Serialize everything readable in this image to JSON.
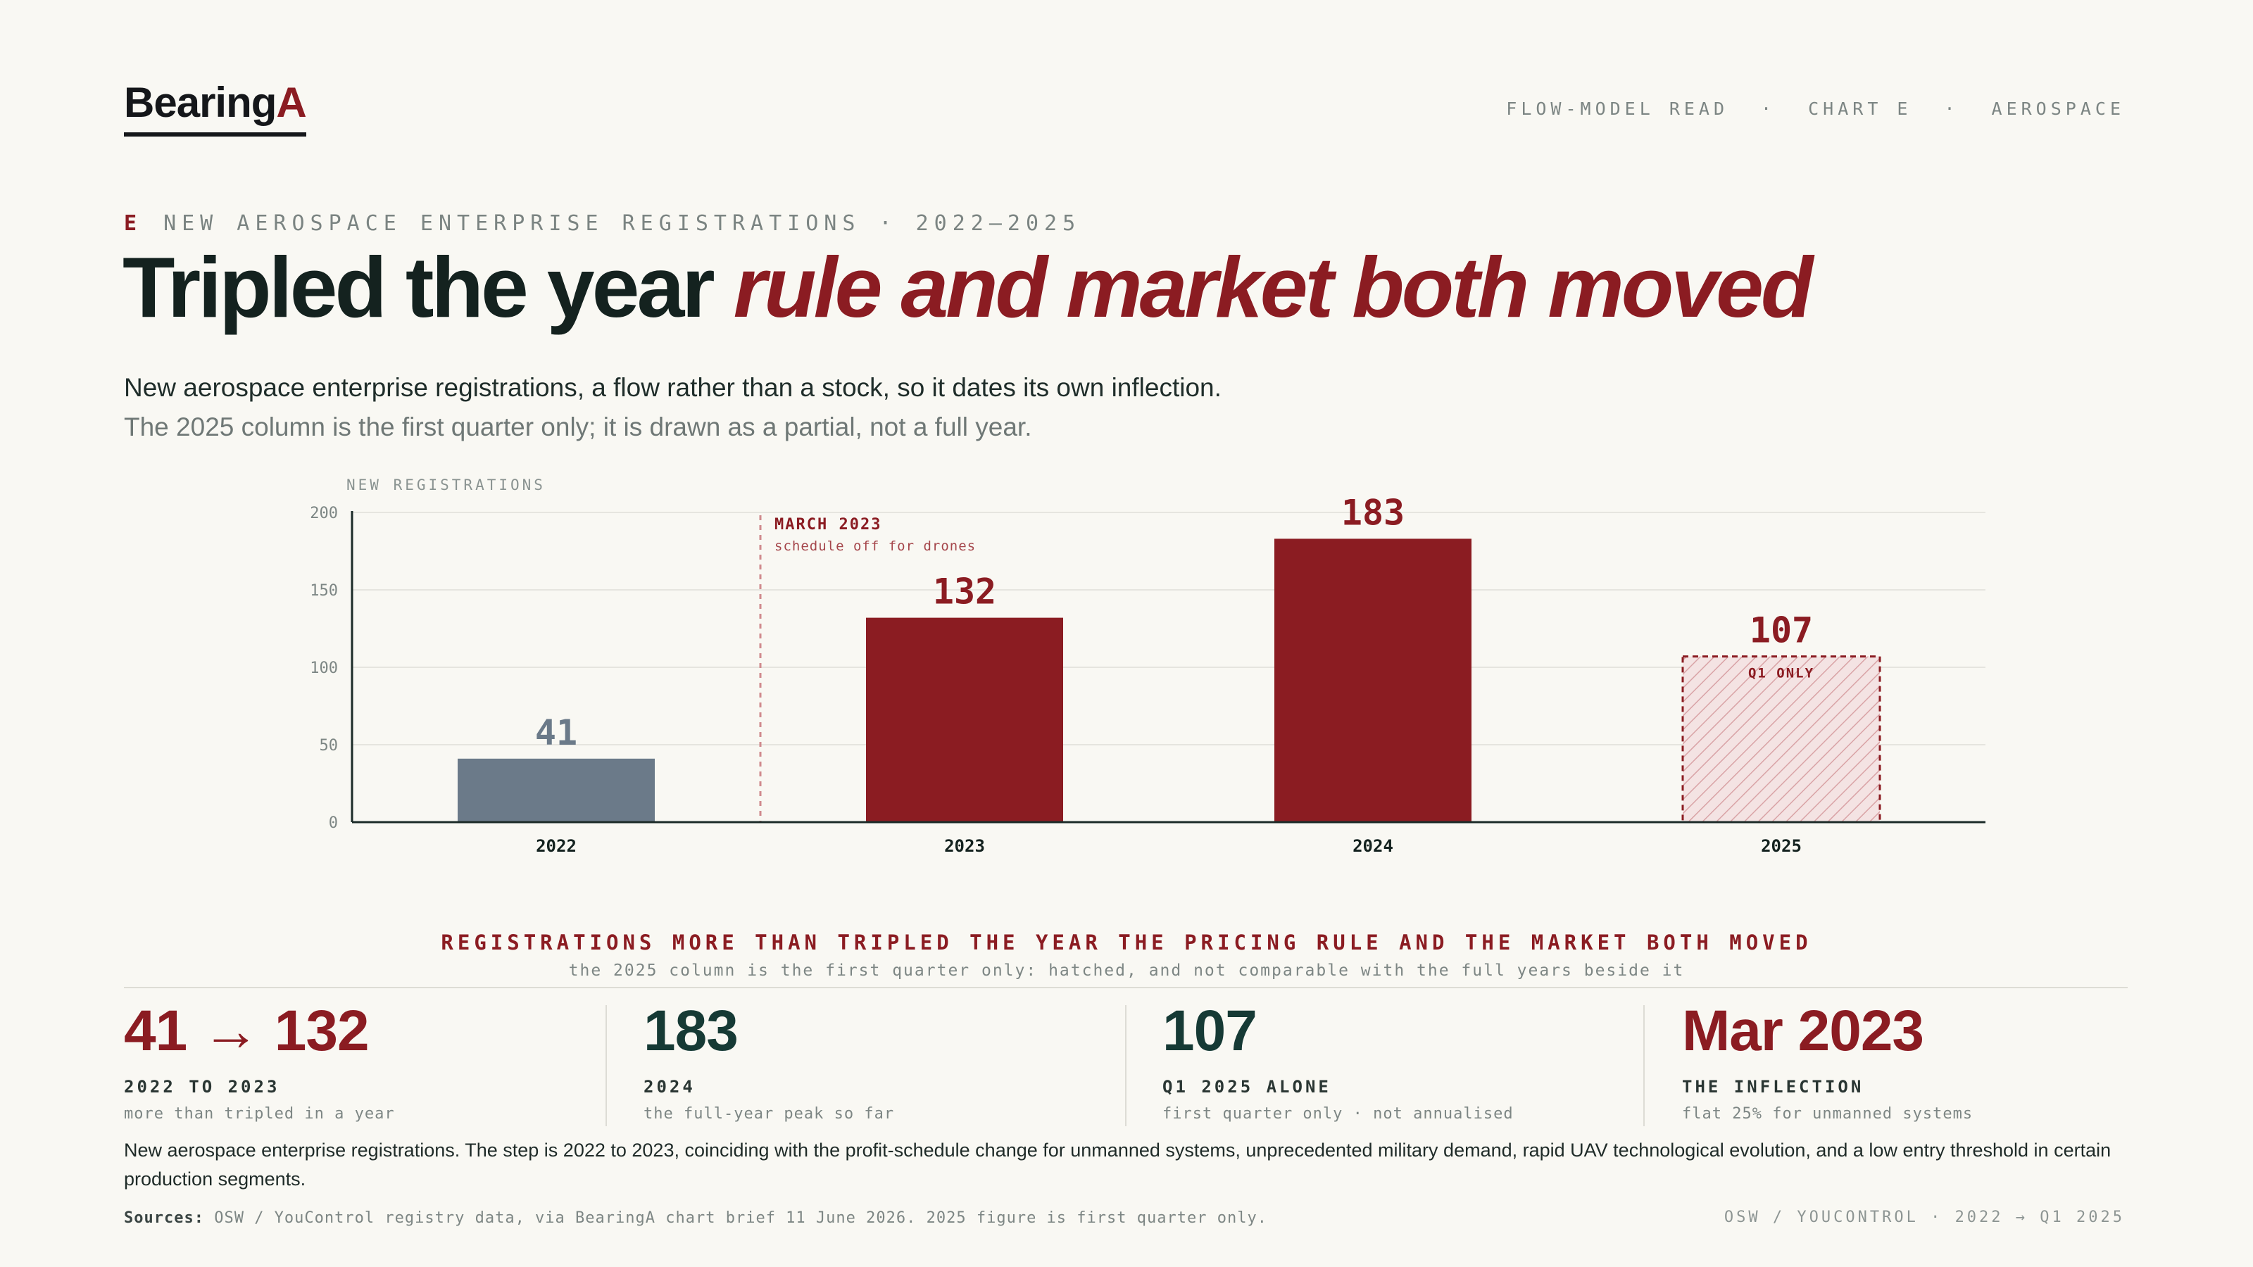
{
  "brand": {
    "name": "Bearing",
    "accent": "A"
  },
  "header_nav": [
    "FLOW-MODEL READ",
    "·",
    "CHART E",
    "·",
    "AEROSPACE"
  ],
  "eyebrow": {
    "letter": "E",
    "text": "NEW AEROSPACE ENTERPRISE REGISTRATIONS · 2022–2025"
  },
  "headline": {
    "plain": "Tripled the year ",
    "emphasis": "rule and market both moved"
  },
  "lede": {
    "line1": "New aerospace enterprise registrations, a flow rather than a stock, so it dates its own inflection.",
    "line2": "The 2025 column is the first quarter only; it is drawn as a partial, not a full year."
  },
  "colors": {
    "accent": "#8b1c22",
    "muted_bar": "#6b7a89",
    "teal": "#163a35",
    "ink": "#14221f"
  },
  "chart_data": {
    "type": "bar",
    "ylabel": "NEW REGISTRATIONS",
    "categories": [
      "2022",
      "2023",
      "2024",
      "2025"
    ],
    "values": [
      41,
      132,
      183,
      107
    ],
    "ylim": [
      0,
      200
    ],
    "yticks": [
      0,
      50,
      100,
      150,
      200
    ],
    "grid": true,
    "partial_bar": {
      "category": "2025",
      "label": "Q1 ONLY"
    },
    "annotation": {
      "title": "MARCH 2023",
      "subtitle": "schedule off for drones"
    }
  },
  "takeaway": {
    "title": "REGISTRATIONS MORE THAN TRIPLED THE YEAR THE PRICING RULE AND THE MARKET BOTH MOVED",
    "subtitle": "the 2025 column is the first quarter only: hatched, and not comparable with the full years beside it"
  },
  "stats": [
    {
      "value": "41 → 132",
      "label": "2022 TO 2023",
      "sub": "more than tripled in a year",
      "color": "#8b1c22"
    },
    {
      "value": "183",
      "label": "2024",
      "sub": "the full-year peak so far",
      "color": "#163a35"
    },
    {
      "value": "107",
      "label": "Q1 2025 ALONE",
      "sub": "first quarter only · not annualised",
      "color": "#163a35"
    },
    {
      "value": "Mar 2023",
      "label": "THE INFLECTION",
      "sub": "flat 25% for unmanned systems",
      "color": "#8b1c22"
    }
  ],
  "note": "New aerospace enterprise registrations. The step is 2022 to 2023, coinciding with the profit-schedule change for unmanned systems, unprecedented military demand, rapid UAV technological evolution, and a low entry threshold in certain production segments.",
  "sources": {
    "label": "Sources:",
    "text": " OSW / YouControl registry data, via BearingA chart brief 11 June 2026. 2025 figure is first quarter only."
  },
  "footer_right": "OSW / YOUCONTROL · 2022 → Q1 2025"
}
